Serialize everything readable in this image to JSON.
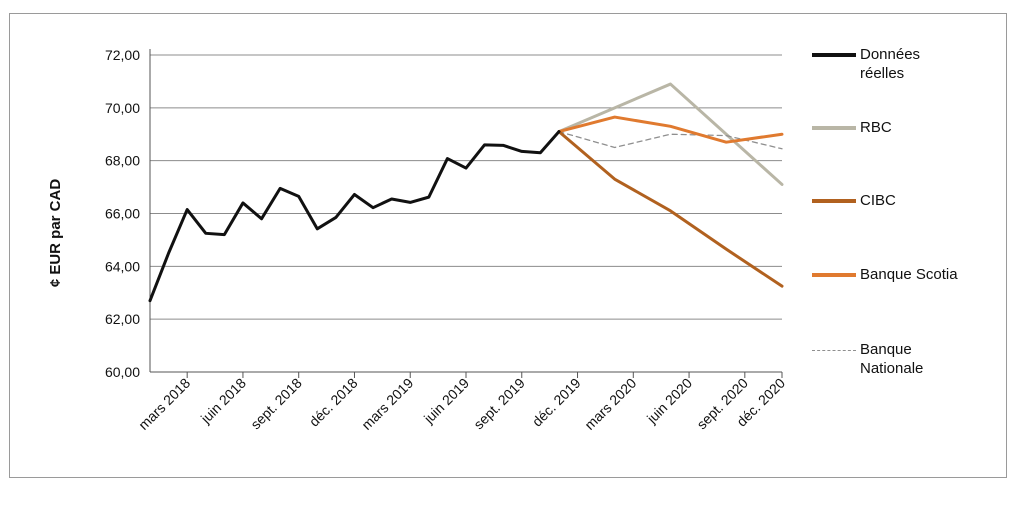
{
  "chart_data": {
    "type": "line",
    "ylabel": "¢ EUR par CAD",
    "xlabel": "",
    "ylim": [
      60,
      72
    ],
    "y_ticks": [
      "60,00",
      "62,00",
      "64,00",
      "66,00",
      "68,00",
      "70,00",
      "72,00"
    ],
    "y_tick_values": [
      60,
      62,
      64,
      66,
      68,
      70,
      72
    ],
    "x_ticks": [
      "mars 2018",
      "juin 2018",
      "sept. 2018",
      "déc. 2018",
      "mars 2019",
      "juin 2019",
      "sept. 2019",
      "déc. 2019",
      "mars 2020",
      "juin 2020",
      "sept. 2020",
      "déc. 2020"
    ],
    "grid": "horizontal",
    "legend_position": "right",
    "series": [
      {
        "name": "Données\nréelles",
        "color": "#111111",
        "style": "solid",
        "values": [
          62.7,
          64.5,
          66.15,
          65.25,
          65.2,
          66.4,
          65.8,
          66.95,
          66.65,
          65.42,
          65.85,
          66.72,
          66.22,
          66.55,
          66.42,
          66.62,
          68.08,
          67.72,
          68.6,
          68.58,
          68.35,
          68.3,
          69.1
        ],
        "x_start": 0
      },
      {
        "name": "RBC",
        "color": "#b9b6a6",
        "style": "solid",
        "values": [
          69.1,
          70.0,
          70.9,
          69.0,
          67.1
        ],
        "x_positions": [
          22,
          25,
          28,
          31,
          34
        ]
      },
      {
        "name": "CIBC",
        "color": "#b1611f",
        "style": "solid",
        "values": [
          69.1,
          67.3,
          66.1,
          64.65,
          63.25
        ],
        "x_positions": [
          22,
          25,
          28,
          31,
          34
        ]
      },
      {
        "name": "Banque Scotia",
        "color": "#e07a2f",
        "style": "solid",
        "values": [
          69.1,
          69.65,
          69.3,
          68.7,
          69.0
        ],
        "x_positions": [
          22,
          25,
          28,
          31,
          34
        ]
      },
      {
        "name": "Banque\nNationale",
        "color": "#8f8f8f",
        "style": "dashed",
        "values": [
          69.1,
          68.5,
          69.0,
          68.95,
          68.45
        ],
        "x_positions": [
          22,
          25,
          28,
          31,
          34
        ]
      }
    ]
  }
}
